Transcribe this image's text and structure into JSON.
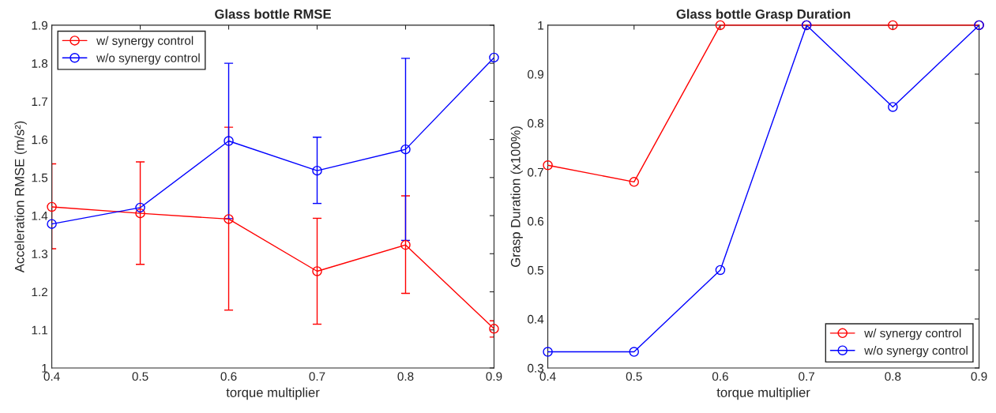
{
  "chart_data": [
    {
      "type": "line",
      "title": "Glass bottle RMSE",
      "xlabel": "torque multiplier",
      "ylabel": "Acceleration RMSE (m/s²)",
      "x": [
        0.4,
        0.5,
        0.6,
        0.7,
        0.8,
        0.9
      ],
      "series": [
        {
          "name": "w/ synergy control",
          "color": "#ff0000",
          "values": [
            1.423,
            1.406,
            1.391,
            1.254,
            1.323,
            1.103
          ],
          "errors": [
            [
              1.313,
              1.536
            ],
            [
              1.272,
              1.541
            ],
            [
              1.152,
              1.632
            ],
            [
              1.115,
              1.393
            ],
            [
              1.196,
              1.452
            ],
            [
              1.081,
              1.124
            ]
          ]
        },
        {
          "name": "w/o synergy control",
          "color": "#0000ff",
          "values": [
            1.378,
            1.421,
            1.596,
            1.518,
            1.574,
            1.815
          ],
          "errors": [
            null,
            null,
            [
              1.392,
              1.8
            ],
            [
              1.432,
              1.606
            ],
            [
              1.335,
              1.813
            ],
            null
          ]
        }
      ],
      "xlim": [
        0.4,
        0.9
      ],
      "xticks": [
        0.4,
        0.5,
        0.6,
        0.7,
        0.8,
        0.9
      ],
      "ylim": [
        1,
        1.9
      ],
      "yticks": [
        1,
        1.1,
        1.2,
        1.3,
        1.4,
        1.5,
        1.6,
        1.7,
        1.8,
        1.9
      ],
      "marker": "circle",
      "grid": false,
      "legend": "top left"
    },
    {
      "type": "line",
      "title": "Glass bottle Grasp Duration",
      "xlabel": "torque multiplier",
      "ylabel": "Grasp Duration (x100%)",
      "x": [
        0.4,
        0.5,
        0.6,
        0.7,
        0.8,
        0.9
      ],
      "series": [
        {
          "name": "w/ synergy control",
          "color": "#ff0000",
          "values": [
            0.714,
            0.68,
            1,
            1,
            1,
            1
          ]
        },
        {
          "name": "w/o synergy control",
          "color": "#0000ff",
          "values": [
            0.333,
            0.333,
            0.5,
            1,
            0.833,
            1
          ]
        }
      ],
      "xlim": [
        0.4,
        0.9
      ],
      "xticks": [
        0.4,
        0.5,
        0.6,
        0.7,
        0.8,
        0.9
      ],
      "ylim": [
        0.3,
        1
      ],
      "yticks": [
        0.3,
        0.4,
        0.5,
        0.6,
        0.7,
        0.8,
        0.9,
        1
      ],
      "marker": "circle",
      "grid": false,
      "legend": "bottom right"
    }
  ]
}
